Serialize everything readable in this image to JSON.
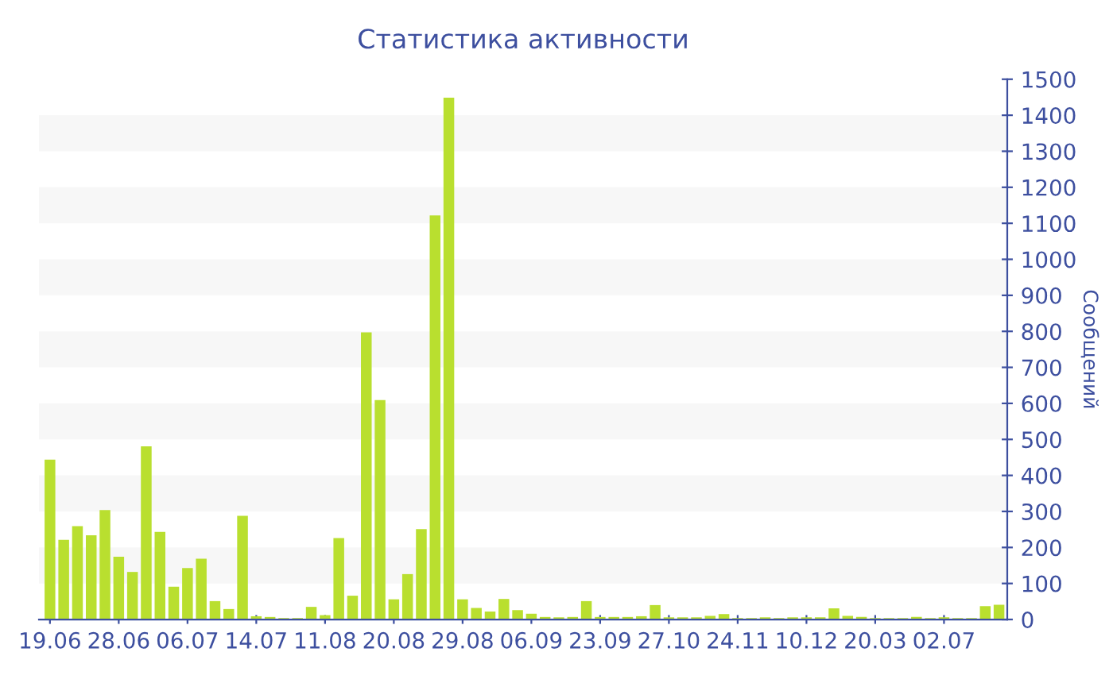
{
  "chart_data": {
    "type": "bar",
    "title": "Статистика активности",
    "ylabel": "Сообщений",
    "categories": [
      "19.06",
      null,
      null,
      null,
      null,
      "28.06",
      null,
      null,
      null,
      null,
      "06.07",
      null,
      null,
      null,
      null,
      "14.07",
      null,
      null,
      null,
      null,
      "11.08",
      null,
      null,
      null,
      null,
      "20.08",
      null,
      null,
      null,
      null,
      "29.08",
      null,
      null,
      null,
      null,
      "06.09",
      null,
      null,
      null,
      null,
      "23.09",
      null,
      null,
      null,
      null,
      "27.10",
      null,
      null,
      null,
      null,
      "24.11",
      null,
      null,
      null,
      null,
      "10.12",
      null,
      null,
      null,
      null,
      "20.03",
      null,
      null,
      null,
      null,
      "02.07",
      null,
      null,
      null,
      null
    ],
    "values": [
      444,
      221,
      259,
      234,
      304,
      174,
      132,
      481,
      243,
      91,
      143,
      169,
      51,
      29,
      288,
      9,
      7,
      4,
      4,
      35,
      12,
      226,
      66,
      797,
      609,
      56,
      126,
      251,
      1122,
      1449,
      56,
      32,
      22,
      57,
      26,
      16,
      7,
      6,
      7,
      51,
      7,
      7,
      7,
      9,
      40,
      6,
      6,
      6,
      10,
      15,
      4,
      4,
      6,
      4,
      6,
      6,
      6,
      31,
      10,
      7,
      4,
      4,
      4,
      7,
      4,
      6,
      4,
      4,
      37,
      41
    ],
    "color": "#b9df2f",
    "ylim": [
      0,
      1500
    ],
    "yticks": [
      0,
      100,
      200,
      300,
      400,
      500,
      600,
      700,
      800,
      900,
      1000,
      1100,
      1200,
      1300,
      1400,
      1500
    ],
    "bands": [
      {
        "axis": "y",
        "from": 100,
        "to": 200,
        "color": "#f7f7f7"
      },
      {
        "axis": "y",
        "from": 300,
        "to": 400,
        "color": "#f7f7f7"
      },
      {
        "axis": "y",
        "from": 500,
        "to": 600,
        "color": "#f7f7f7"
      },
      {
        "axis": "y",
        "from": 700,
        "to": 800,
        "color": "#f7f7f7"
      },
      {
        "axis": "y",
        "from": 900,
        "to": 1000,
        "color": "#f7f7f7"
      },
      {
        "axis": "y",
        "from": 1100,
        "to": 1200,
        "color": "#f7f7f7"
      },
      {
        "axis": "y",
        "from": 1300,
        "to": 1400,
        "color": "#f7f7f7"
      }
    ],
    "grid": false,
    "legend": false
  }
}
